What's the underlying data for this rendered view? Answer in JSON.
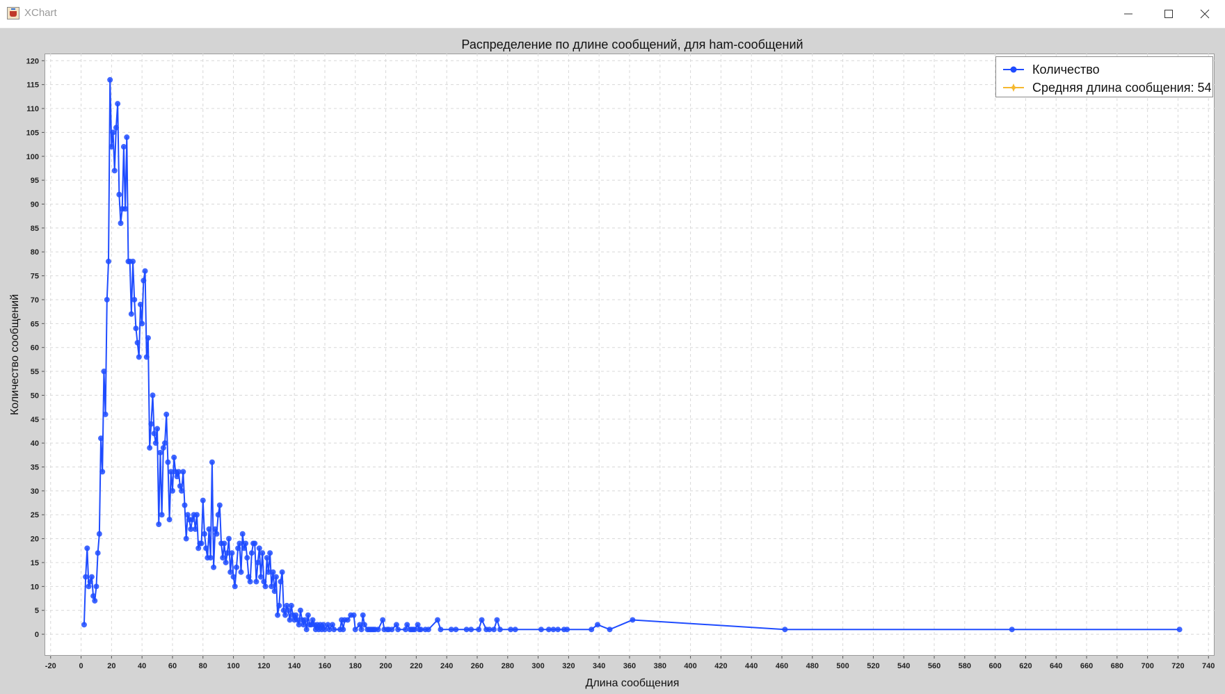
{
  "window": {
    "title": "XChart"
  },
  "colors": {
    "series": "#1f4cff",
    "mean": "#f5b82e",
    "grid": "#d8d8d8"
  },
  "chart_data": {
    "type": "line",
    "title": "Распределение по длине сообщений, для ham-сообщений",
    "xlabel": "Длина сообщения",
    "ylabel": "Количество сообщений",
    "xlim": [
      -24,
      744
    ],
    "ylim": [
      -4.5,
      121.5
    ],
    "x_ticks": [
      -20,
      0,
      20,
      40,
      60,
      80,
      100,
      120,
      140,
      160,
      180,
      200,
      220,
      240,
      260,
      280,
      300,
      320,
      340,
      360,
      380,
      400,
      420,
      440,
      460,
      480,
      500,
      520,
      540,
      560,
      580,
      600,
      620,
      640,
      660,
      680,
      700,
      720,
      740
    ],
    "y_ticks": [
      0,
      5,
      10,
      15,
      20,
      25,
      30,
      35,
      40,
      45,
      50,
      55,
      60,
      65,
      70,
      75,
      80,
      85,
      90,
      95,
      100,
      105,
      110,
      115,
      120
    ],
    "grid": true,
    "legend": "top-right",
    "legend_entries": [
      "Количество",
      "Средняя длина сообщения: 54"
    ],
    "series": [
      {
        "name": "Количество",
        "points": [
          [
            2,
            2
          ],
          [
            3,
            12
          ],
          [
            4,
            18
          ],
          [
            5,
            10
          ],
          [
            6,
            11
          ],
          [
            7,
            12
          ],
          [
            8,
            8
          ],
          [
            9,
            7
          ],
          [
            10,
            10
          ],
          [
            11,
            17
          ],
          [
            12,
            21
          ],
          [
            13,
            41
          ],
          [
            14,
            34
          ],
          [
            15,
            55
          ],
          [
            16,
            46
          ],
          [
            17,
            70
          ],
          [
            18,
            78
          ],
          [
            19,
            116
          ],
          [
            20,
            102
          ],
          [
            21,
            105
          ],
          [
            22,
            97
          ],
          [
            23,
            106
          ],
          [
            24,
            111
          ],
          [
            25,
            92
          ],
          [
            26,
            86
          ],
          [
            27,
            89
          ],
          [
            28,
            102
          ],
          [
            29,
            89
          ],
          [
            30,
            104
          ],
          [
            31,
            78
          ],
          [
            32,
            78
          ],
          [
            33,
            67
          ],
          [
            34,
            78
          ],
          [
            35,
            70
          ],
          [
            36,
            64
          ],
          [
            37,
            61
          ],
          [
            38,
            58
          ],
          [
            39,
            69
          ],
          [
            40,
            65
          ],
          [
            41,
            74
          ],
          [
            42,
            76
          ],
          [
            43,
            58
          ],
          [
            44,
            62
          ],
          [
            45,
            39
          ],
          [
            46,
            44
          ],
          [
            47,
            50
          ],
          [
            48,
            42
          ],
          [
            49,
            40
          ],
          [
            50,
            43
          ],
          [
            51,
            23
          ],
          [
            52,
            38
          ],
          [
            53,
            25
          ],
          [
            54,
            39
          ],
          [
            55,
            40
          ],
          [
            56,
            46
          ],
          [
            57,
            36
          ],
          [
            58,
            24
          ],
          [
            59,
            34
          ],
          [
            60,
            30
          ],
          [
            61,
            37
          ],
          [
            62,
            34
          ],
          [
            63,
            33
          ],
          [
            64,
            34
          ],
          [
            65,
            31
          ],
          [
            66,
            30
          ],
          [
            67,
            34
          ],
          [
            68,
            27
          ],
          [
            69,
            20
          ],
          [
            70,
            25
          ],
          [
            71,
            24
          ],
          [
            72,
            22
          ],
          [
            73,
            24
          ],
          [
            74,
            25
          ],
          [
            75,
            22
          ],
          [
            76,
            25
          ],
          [
            77,
            18
          ],
          [
            78,
            19
          ],
          [
            79,
            19
          ],
          [
            80,
            28
          ],
          [
            81,
            21
          ],
          [
            82,
            18
          ],
          [
            83,
            16
          ],
          [
            84,
            22
          ],
          [
            85,
            16
          ],
          [
            86,
            36
          ],
          [
            87,
            14
          ],
          [
            88,
            22
          ],
          [
            89,
            21
          ],
          [
            90,
            25
          ],
          [
            91,
            27
          ],
          [
            92,
            19
          ],
          [
            93,
            16
          ],
          [
            94,
            19
          ],
          [
            95,
            15
          ],
          [
            96,
            17
          ],
          [
            97,
            20
          ],
          [
            98,
            13
          ],
          [
            99,
            17
          ],
          [
            100,
            12
          ],
          [
            101,
            10
          ],
          [
            102,
            14
          ],
          [
            103,
            18
          ],
          [
            104,
            19
          ],
          [
            105,
            13
          ],
          [
            106,
            21
          ],
          [
            107,
            18
          ],
          [
            108,
            19
          ],
          [
            109,
            16
          ],
          [
            110,
            12
          ],
          [
            111,
            11
          ],
          [
            112,
            17
          ],
          [
            113,
            19
          ],
          [
            114,
            19
          ],
          [
            115,
            11
          ],
          [
            116,
            15
          ],
          [
            117,
            18
          ],
          [
            118,
            12
          ],
          [
            119,
            17
          ],
          [
            120,
            11
          ],
          [
            121,
            10
          ],
          [
            122,
            16
          ],
          [
            123,
            13
          ],
          [
            124,
            17
          ],
          [
            125,
            10
          ],
          [
            126,
            13
          ],
          [
            127,
            9
          ],
          [
            128,
            12
          ],
          [
            129,
            4
          ],
          [
            130,
            6
          ],
          [
            131,
            11
          ],
          [
            132,
            13
          ],
          [
            133,
            5
          ],
          [
            134,
            4
          ],
          [
            135,
            6
          ],
          [
            136,
            5
          ],
          [
            137,
            3
          ],
          [
            138,
            6
          ],
          [
            139,
            4
          ],
          [
            140,
            3
          ],
          [
            141,
            4
          ],
          [
            142,
            3
          ],
          [
            143,
            2
          ],
          [
            144,
            5
          ],
          [
            145,
            3
          ],
          [
            146,
            2
          ],
          [
            147,
            3
          ],
          [
            148,
            1
          ],
          [
            149,
            4
          ],
          [
            150,
            2
          ],
          [
            151,
            2
          ],
          [
            152,
            3
          ],
          [
            153,
            2
          ],
          [
            154,
            1
          ],
          [
            155,
            2
          ],
          [
            156,
            1
          ],
          [
            157,
            2
          ],
          [
            158,
            1
          ],
          [
            159,
            2
          ],
          [
            160,
            1
          ],
          [
            162,
            2
          ],
          [
            163,
            1
          ],
          [
            165,
            2
          ],
          [
            166,
            1
          ],
          [
            170,
            1
          ],
          [
            171,
            3
          ],
          [
            172,
            1
          ],
          [
            173,
            3
          ],
          [
            175,
            3
          ],
          [
            177,
            4
          ],
          [
            179,
            4
          ],
          [
            180,
            1
          ],
          [
            183,
            2
          ],
          [
            184,
            1
          ],
          [
            185,
            4
          ],
          [
            186,
            2
          ],
          [
            188,
            1
          ],
          [
            189,
            1
          ],
          [
            190,
            1
          ],
          [
            191,
            1
          ],
          [
            192,
            1
          ],
          [
            193,
            1
          ],
          [
            195,
            1
          ],
          [
            198,
            3
          ],
          [
            199,
            1
          ],
          [
            201,
            1
          ],
          [
            202,
            1
          ],
          [
            204,
            1
          ],
          [
            207,
            2
          ],
          [
            208,
            1
          ],
          [
            213,
            1
          ],
          [
            214,
            2
          ],
          [
            216,
            1
          ],
          [
            217,
            1
          ],
          [
            218,
            1
          ],
          [
            219,
            1
          ],
          [
            221,
            2
          ],
          [
            222,
            1
          ],
          [
            223,
            1
          ],
          [
            226,
            1
          ],
          [
            228,
            1
          ],
          [
            234,
            3
          ],
          [
            236,
            1
          ],
          [
            243,
            1
          ],
          [
            246,
            1
          ],
          [
            253,
            1
          ],
          [
            256,
            1
          ],
          [
            261,
            1
          ],
          [
            263,
            3
          ],
          [
            266,
            1
          ],
          [
            268,
            1
          ],
          [
            271,
            1
          ],
          [
            273,
            3
          ],
          [
            275,
            1
          ],
          [
            282,
            1
          ],
          [
            285,
            1
          ],
          [
            302,
            1
          ],
          [
            307,
            1
          ],
          [
            310,
            1
          ],
          [
            313,
            1
          ],
          [
            317,
            1
          ],
          [
            319,
            1
          ],
          [
            335,
            1
          ],
          [
            339,
            2
          ],
          [
            347,
            1
          ],
          [
            362,
            3
          ],
          [
            462,
            1
          ],
          [
            611,
            1
          ],
          [
            721,
            1
          ]
        ]
      }
    ]
  }
}
